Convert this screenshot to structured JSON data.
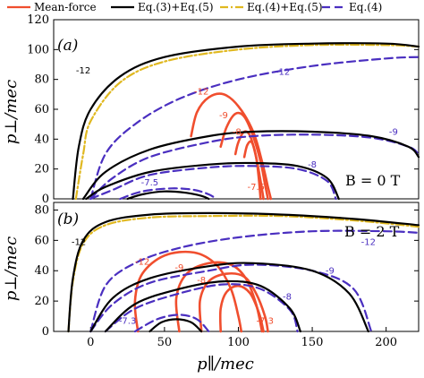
{
  "legend": {
    "items": [
      {
        "label": "Mean-force",
        "color": "#f04e2e",
        "dash": "solid"
      },
      {
        "label": "Eq.(3)+Eq.(5)",
        "color": "#000000",
        "dash": "solid"
      },
      {
        "label": "Eq.(4)+Eq.(5)",
        "color": "#e0b820",
        "dash": "dashdot"
      },
      {
        "label": "Eq.(4)",
        "color": "#4a2fc0",
        "dash": "dashed"
      }
    ]
  },
  "axes": {
    "xlabel": "p∥/mec",
    "ylabel": "p⊥/mec"
  },
  "chart_data": [
    {
      "type": "line",
      "panel_label": "(a)",
      "field_label": "B = 0 T",
      "xlim": [
        -25,
        222
      ],
      "ylim": [
        0,
        120
      ],
      "xticks": [],
      "yticks": [
        0,
        20,
        40,
        60,
        80,
        100,
        120
      ],
      "series": [
        {
          "name": "Eq.(3)+Eq.(5)",
          "color": "#000000",
          "dash": "solid",
          "level": "-12",
          "x": [
            -12,
            -8,
            0,
            20,
            50,
            100,
            150,
            200,
            222
          ],
          "y": [
            0,
            35,
            60,
            82,
            95,
            102,
            104,
            104,
            102
          ]
        },
        {
          "name": "Eq.(4)+Eq.(5)",
          "color": "#e0b820",
          "dash": "dashdot",
          "level": "-12",
          "x": [
            -10,
            -5,
            0,
            20,
            50,
            100,
            150,
            200,
            222
          ],
          "y": [
            0,
            30,
            52,
            78,
            92,
            100,
            103,
            103,
            102
          ]
        },
        {
          "name": "Eq.(4)",
          "color": "#4a2fc0",
          "dash": "dashed",
          "level": "-12",
          "x": [
            0,
            10,
            30,
            60,
            100,
            150,
            200,
            222
          ],
          "y": [
            0,
            30,
            50,
            67,
            80,
            89,
            94,
            95
          ]
        },
        {
          "name": "Eq.(3)+Eq.(5)",
          "color": "#000000",
          "dash": "solid",
          "level": "-9",
          "x": [
            -5,
            10,
            40,
            80,
            110,
            150,
            190,
            215,
            222
          ],
          "y": [
            0,
            18,
            33,
            42,
            45,
            45,
            42,
            35,
            28
          ]
        },
        {
          "name": "Eq.(4)",
          "color": "#4a2fc0",
          "dash": "dashed",
          "level": "-9",
          "x": [
            0,
            15,
            40,
            80,
            110,
            150,
            190,
            215,
            222
          ],
          "y": [
            0,
            14,
            28,
            38,
            42,
            43,
            41,
            35,
            30
          ]
        },
        {
          "name": "Eq.(3)+Eq.(5)",
          "color": "#000000",
          "dash": "solid",
          "level": "-8",
          "x": [
            -3,
            10,
            40,
            80,
            110,
            140,
            160,
            168
          ],
          "y": [
            0,
            8,
            18,
            23,
            24,
            22,
            14,
            0
          ]
        },
        {
          "name": "Eq.(4)",
          "color": "#4a2fc0",
          "dash": "dashed",
          "level": "-8",
          "x": [
            0,
            15,
            40,
            80,
            110,
            140,
            160,
            166
          ],
          "y": [
            0,
            6,
            16,
            21,
            22,
            20,
            12,
            0
          ]
        },
        {
          "name": "Eq.(3)+Eq.(5)",
          "color": "#000000",
          "dash": "solid",
          "level": "-7.5",
          "x": [
            25,
            35,
            50,
            65,
            75,
            80
          ],
          "y": [
            0,
            3,
            5,
            4,
            2,
            0
          ]
        },
        {
          "name": "Eq.(4)",
          "color": "#4a2fc0",
          "dash": "dashed",
          "level": "-7.5",
          "x": [
            20,
            35,
            55,
            70,
            80,
            85
          ],
          "y": [
            0,
            5,
            7,
            6,
            3,
            0
          ]
        },
        {
          "name": "Mean-force",
          "color": "#f04e2e",
          "dash": "solid",
          "level": "-12",
          "x": [
            68,
            72,
            80,
            90,
            100,
            110,
            116,
            120,
            122
          ],
          "y": [
            42,
            58,
            68,
            70,
            62,
            45,
            25,
            8,
            0
          ]
        },
        {
          "name": "Mean-force",
          "color": "#f04e2e",
          "dash": "solid",
          "level": "-9",
          "x": [
            88,
            92,
            98,
            104,
            110,
            115,
            118,
            120
          ],
          "y": [
            35,
            48,
            57,
            55,
            42,
            25,
            10,
            0
          ]
        },
        {
          "name": "Mean-force",
          "color": "#f04e2e",
          "dash": "solid",
          "level": "-8",
          "x": [
            98,
            100,
            104,
            108,
            112,
            115,
            117
          ],
          "y": [
            30,
            38,
            45,
            42,
            28,
            12,
            0
          ]
        },
        {
          "name": "Mean-force",
          "color": "#f04e2e",
          "dash": "solid",
          "level": "-7.5",
          "x": [
            104,
            106,
            109,
            112,
            114,
            115
          ],
          "y": [
            28,
            36,
            38,
            28,
            12,
            0
          ]
        }
      ],
      "annotations": [
        {
          "text": "-12",
          "x": -5,
          "y": 84,
          "color": "#000000"
        },
        {
          "text": "-12",
          "x": 130,
          "y": 83,
          "color": "#4a2fc0"
        },
        {
          "text": "-12",
          "x": 75,
          "y": 70,
          "color": "#f04e2e"
        },
        {
          "text": "-9",
          "x": 90,
          "y": 54,
          "color": "#f04e2e"
        },
        {
          "text": "-8",
          "x": 99,
          "y": 43,
          "color": "#f04e2e"
        },
        {
          "text": "-9",
          "x": 205,
          "y": 43,
          "color": "#4a2fc0"
        },
        {
          "text": "-8",
          "x": 150,
          "y": 21,
          "color": "#4a2fc0"
        },
        {
          "text": "-7.5",
          "x": 112,
          "y": 6,
          "color": "#f04e2e"
        },
        {
          "text": "-7.5",
          "x": 40,
          "y": 9,
          "color": "#4a2fc0"
        }
      ]
    },
    {
      "type": "line",
      "panel_label": "(b)",
      "field_label": "B = 2 T",
      "xlim": [
        -25,
        222
      ],
      "ylim": [
        0,
        85
      ],
      "xticks": [
        0,
        50,
        100,
        150,
        200
      ],
      "yticks": [
        0,
        20,
        40,
        60,
        80
      ],
      "series": [
        {
          "name": "Eq.(3)+Eq.(5)",
          "color": "#000000",
          "dash": "solid",
          "level": "-12",
          "x": [
            -15,
            -12,
            -5,
            10,
            40,
            80,
            130,
            180,
            222
          ],
          "y": [
            0,
            35,
            60,
            72,
            77,
            78,
            77,
            74,
            70
          ]
        },
        {
          "name": "Eq.(4)+Eq.(5)",
          "color": "#e0b820",
          "dash": "dashdot",
          "level": "-12",
          "x": [
            -15,
            -12,
            -5,
            10,
            40,
            80,
            130,
            180,
            222
          ],
          "y": [
            0,
            33,
            58,
            70,
            75,
            76,
            76,
            73,
            69
          ]
        },
        {
          "name": "Eq.(4)",
          "color": "#4a2fc0",
          "dash": "dashed",
          "level": "-12",
          "x": [
            0,
            10,
            30,
            60,
            100,
            150,
            200,
            222
          ],
          "y": [
            0,
            30,
            45,
            55,
            62,
            66,
            66,
            65
          ]
        },
        {
          "name": "Eq.(3)+Eq.(5)",
          "color": "#000000",
          "dash": "solid",
          "level": "-9",
          "x": [
            0,
            15,
            40,
            80,
            110,
            150,
            175,
            188
          ],
          "y": [
            0,
            22,
            35,
            43,
            45,
            40,
            25,
            0
          ]
        },
        {
          "name": "Eq.(4)",
          "color": "#4a2fc0",
          "dash": "dashed",
          "level": "-9",
          "x": [
            0,
            15,
            40,
            80,
            110,
            150,
            178,
            190
          ],
          "y": [
            0,
            18,
            32,
            40,
            44,
            40,
            28,
            0
          ]
        },
        {
          "name": "Eq.(3)+Eq.(5)",
          "color": "#000000",
          "dash": "solid",
          "level": "-8",
          "x": [
            10,
            30,
            60,
            90,
            115,
            135,
            142
          ],
          "y": [
            0,
            18,
            28,
            33,
            30,
            15,
            0
          ]
        },
        {
          "name": "Eq.(4)",
          "color": "#4a2fc0",
          "dash": "dashed",
          "level": "-8",
          "x": [
            10,
            30,
            60,
            90,
            115,
            135,
            140
          ],
          "y": [
            0,
            15,
            25,
            31,
            28,
            14,
            0
          ]
        },
        {
          "name": "Eq.(3)+Eq.(5)",
          "color": "#000000",
          "dash": "solid",
          "level": "-7.3",
          "x": [
            40,
            48,
            58,
            68,
            75
          ],
          "y": [
            0,
            6,
            8,
            6,
            0
          ]
        },
        {
          "name": "Eq.(4)",
          "color": "#4a2fc0",
          "dash": "dashed",
          "level": "-7.3",
          "x": [
            30,
            45,
            60,
            72,
            80
          ],
          "y": [
            0,
            8,
            11,
            8,
            0
          ]
        },
        {
          "name": "Mean-force",
          "color": "#f04e2e",
          "dash": "solid",
          "level": "-12",
          "x": [
            32,
            30,
            35,
            50,
            70,
            85,
            95,
            100,
            102
          ],
          "y": [
            0,
            20,
            38,
            50,
            52,
            44,
            28,
            10,
            0
          ]
        },
        {
          "name": "Mean-force",
          "color": "#f04e2e",
          "dash": "solid",
          "level": "-9",
          "x": [
            60,
            58,
            65,
            80,
            95,
            105,
            112,
            116
          ],
          "y": [
            0,
            22,
            38,
            45,
            44,
            35,
            18,
            0
          ]
        },
        {
          "name": "Mean-force",
          "color": "#f04e2e",
          "dash": "solid",
          "level": "-8",
          "x": [
            75,
            74,
            80,
            92,
            104,
            112,
            118,
            120
          ],
          "y": [
            0,
            20,
            33,
            38,
            36,
            25,
            10,
            0
          ]
        },
        {
          "name": "Mean-force",
          "color": "#f04e2e",
          "dash": "solid",
          "level": "-7.3",
          "x": [
            88,
            88,
            92,
            100,
            108,
            114,
            117
          ],
          "y": [
            0,
            15,
            26,
            30,
            25,
            12,
            0
          ]
        }
      ],
      "annotations": [
        {
          "text": "-12",
          "x": -8,
          "y": 57,
          "color": "#000000"
        },
        {
          "text": "-12",
          "x": 188,
          "y": 57,
          "color": "#4a2fc0"
        },
        {
          "text": "-12",
          "x": 35,
          "y": 44,
          "color": "#f04e2e"
        },
        {
          "text": "-9",
          "x": 60,
          "y": 40,
          "color": "#f04e2e"
        },
        {
          "text": "-8",
          "x": 75,
          "y": 32,
          "color": "#f04e2e"
        },
        {
          "text": "-9",
          "x": 162,
          "y": 38,
          "color": "#4a2fc0"
        },
        {
          "text": "-8",
          "x": 133,
          "y": 21,
          "color": "#4a2fc0"
        },
        {
          "text": "-7.3",
          "x": 118,
          "y": 5,
          "color": "#f04e2e"
        },
        {
          "text": "-7.3",
          "x": 25,
          "y": 5,
          "color": "#4a2fc0"
        }
      ]
    }
  ]
}
